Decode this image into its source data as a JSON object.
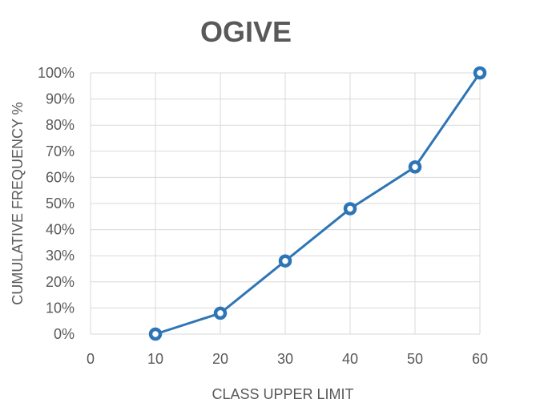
{
  "chart_data": {
    "type": "line",
    "title": "OGIVE",
    "xlabel": "CLASS UPPER LIMIT",
    "ylabel": "CUMULATIVE FREQUENCY %",
    "x_ticks": [
      "0",
      "10",
      "20",
      "30",
      "40",
      "50",
      "60"
    ],
    "y_ticks": [
      "0%",
      "10%",
      "20%",
      "30%",
      "40%",
      "50%",
      "60%",
      "70%",
      "80%",
      "90%",
      "100%"
    ],
    "xlim": [
      0,
      60
    ],
    "ylim": [
      0,
      100
    ],
    "grid": true,
    "legend": "none",
    "series_color": "#2e75b6",
    "series": [
      {
        "x": [
          10,
          20,
          30,
          40,
          50,
          60
        ],
        "values": [
          0,
          8,
          28,
          48,
          64,
          100
        ]
      }
    ]
  }
}
